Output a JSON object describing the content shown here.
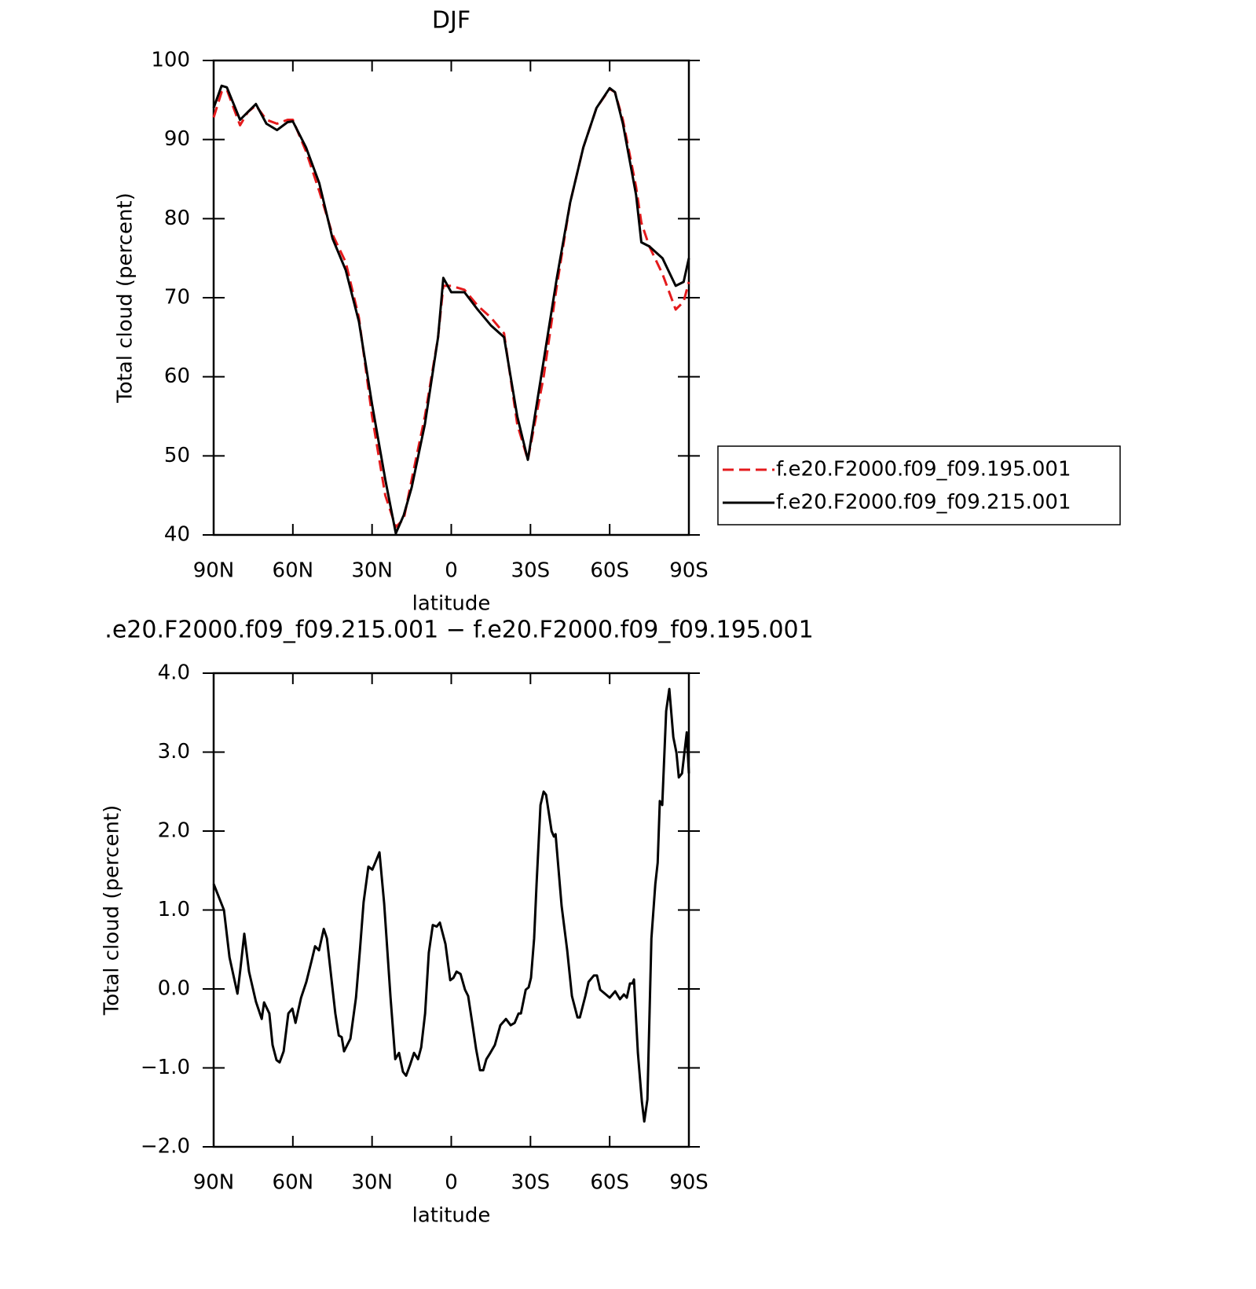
{
  "chart_data": [
    {
      "type": "line",
      "title": "DJF",
      "xlabel": "latitude",
      "ylabel": "Total cloud (percent)",
      "x": [
        90,
        87,
        85,
        80,
        77,
        74,
        70,
        66,
        62,
        60,
        55,
        50,
        45,
        40,
        35,
        30,
        25,
        21,
        18,
        15,
        10,
        5,
        3,
        0,
        -5,
        -10,
        -15,
        -20,
        -25,
        -29,
        -35,
        -40,
        -45,
        -50,
        -55,
        -60,
        -62,
        -65,
        -70,
        -72,
        -75,
        -80,
        -85,
        -88,
        -90
      ],
      "series": [
        {
          "name": "f.e20.F2000.f09_f09.195.001",
          "color": "#e41a1c",
          "dashed": true,
          "values": [
            92.8,
            96,
            96.3,
            91.8,
            93.5,
            94.3,
            92.5,
            92,
            92.5,
            92.5,
            88.5,
            83.5,
            78,
            74.5,
            67.5,
            55,
            45,
            41,
            42,
            47,
            55,
            65,
            71.5,
            71.5,
            71,
            69,
            67.5,
            65.5,
            54,
            49.5,
            60,
            71.5,
            82,
            89,
            94,
            96.4,
            96,
            92.5,
            84,
            79.5,
            76.5,
            73,
            68.5,
            69.5,
            72
          ]
        },
        {
          "name": "f.e20.F2000.f09_f09.215.001",
          "color": "#000000",
          "dashed": false,
          "values": [
            94,
            96.8,
            96.6,
            92.5,
            93.5,
            94.5,
            92,
            91.2,
            92.2,
            92.3,
            89,
            84.5,
            77.5,
            73.5,
            67,
            56.5,
            47,
            40.2,
            42.5,
            46,
            54,
            65,
            72.5,
            70.7,
            70.7,
            68.5,
            66.5,
            65,
            55,
            49.5,
            62,
            72.5,
            82,
            89,
            94,
            96.5,
            96,
            92,
            83,
            77,
            76.5,
            75,
            71.5,
            72,
            75
          ]
        }
      ],
      "xlim": [
        90,
        -90
      ],
      "xticks": [
        {
          "value": 90,
          "label": "90N"
        },
        {
          "value": 60,
          "label": "60N"
        },
        {
          "value": 30,
          "label": "30N"
        },
        0,
        {
          "value": -30,
          "label": "30S"
        },
        {
          "value": -60,
          "label": "60S"
        },
        {
          "value": -90,
          "label": "90S"
        }
      ],
      "ylim": [
        40,
        100
      ],
      "yticks": [
        40,
        50,
        60,
        70,
        80,
        90,
        100
      ],
      "legend": "right"
    },
    {
      "type": "line",
      "title": ".e20.F2000.f09_f09.215.001 − f.e20.F2000.f09_f09.195.001",
      "xlabel": "latitude",
      "ylabel": "Total cloud (percent)",
      "x": [
        90,
        86.1,
        84,
        82.3,
        81,
        79.9,
        78.4,
        76.6,
        74,
        71.8,
        70.9,
        68.9,
        67.7,
        66.2,
        65,
        63.5,
        61.7,
        60.2,
        59,
        56.9,
        54.9,
        52.8,
        51.6,
        50.1,
        48.3,
        47.1,
        43.9,
        42.6,
        41.5,
        40.6,
        38.2,
        36.1,
        34.6,
        33.2,
        31.4,
        29.9,
        28.4,
        27.2,
        25.4,
        23,
        21.2,
        19.8,
        18.3,
        17.1,
        15.6,
        14.1,
        12.6,
        11.4,
        9.9,
        8.5,
        7,
        5.5,
        4.3,
        2.2,
        0.4,
        -0.8,
        -2,
        -3.5,
        -5.2,
        -6.4,
        -8.2,
        -9.4,
        -10.9,
        -12.1,
        -13.3,
        -14.8,
        -16.5,
        -18.6,
        -20.7,
        -22.5,
        -24,
        -25.5,
        -26.4,
        -28.2,
        -29.3,
        -30.2,
        -31.4,
        -32.3,
        -33.8,
        -35,
        -35.9,
        -38,
        -38.9,
        -39.5,
        -41.8,
        -43.9,
        -45.7,
        -47.8,
        -48.7,
        -50.8,
        -52,
        -54,
        -55.2,
        -56.4,
        -58.2,
        -60,
        -62.1,
        -63.9,
        -65.4,
        -66.5,
        -67.7,
        -68.6,
        -69.2,
        -70.7,
        -72.2,
        -73.1,
        -74.3,
        -75.8,
        -77.3,
        -78.2,
        -79,
        -79.9,
        -81.4,
        -82.6,
        -84.1,
        -85.3,
        -86.2,
        -87.4,
        -89.2,
        -90
      ],
      "values": [
        1.33,
        1,
        0.4,
        0.14,
        -0.06,
        0.24,
        0.7,
        0.22,
        -0.16,
        -0.38,
        -0.17,
        -0.31,
        -0.71,
        -0.9,
        -0.93,
        -0.79,
        -0.31,
        -0.25,
        -0.43,
        -0.11,
        0.09,
        0.37,
        0.54,
        0.49,
        0.76,
        0.64,
        -0.31,
        -0.59,
        -0.61,
        -0.79,
        -0.63,
        -0.11,
        0.49,
        1.1,
        1.55,
        1.51,
        1.63,
        1.73,
        1.08,
        -0.11,
        -0.89,
        -0.81,
        -1.05,
        -1.1,
        -0.96,
        -0.81,
        -0.89,
        -0.74,
        -0.31,
        0.46,
        0.81,
        0.79,
        0.84,
        0.57,
        0.11,
        0.14,
        0.22,
        0.19,
        -0.01,
        -0.09,
        -0.49,
        -0.76,
        -1.03,
        -1.03,
        -0.89,
        -0.81,
        -0.71,
        -0.46,
        -0.38,
        -0.46,
        -0.43,
        -0.31,
        -0.31,
        -0.01,
        0.02,
        0.14,
        0.64,
        1.33,
        2.33,
        2.5,
        2.46,
        2,
        1.93,
        1.96,
        1.05,
        0.49,
        -0.09,
        -0.36,
        -0.36,
        -0.09,
        0.09,
        0.17,
        0.17,
        -0.01,
        -0.06,
        -0.11,
        -0.03,
        -0.13,
        -0.07,
        -0.11,
        0.07,
        0.07,
        0.12,
        -0.81,
        -1.43,
        -1.68,
        -1.4,
        0.64,
        1.33,
        1.6,
        2.38,
        2.33,
        3.52,
        3.8,
        3.19,
        2.99,
        2.68,
        2.73,
        3.25,
        2.73
      ],
      "color": "#000000",
      "xlim": [
        90,
        -90
      ],
      "xticks": [
        {
          "value": 90,
          "label": "90N"
        },
        {
          "value": 60,
          "label": "60N"
        },
        {
          "value": 30,
          "label": "30N"
        },
        0,
        {
          "value": -30,
          "label": "30S"
        },
        {
          "value": -60,
          "label": "60S"
        },
        {
          "value": -90,
          "label": "90S"
        }
      ],
      "ylim": [
        -2,
        4
      ],
      "yticks": [
        {
          "value": -2,
          "label": "−2.0"
        },
        {
          "value": -1,
          "label": "−1.0"
        },
        {
          "value": 0,
          "label": "0.0"
        },
        {
          "value": 1,
          "label": "1.0"
        },
        {
          "value": 2,
          "label": "2.0"
        },
        {
          "value": 3,
          "label": "3.0"
        },
        {
          "value": 4,
          "label": "4.0"
        }
      ]
    }
  ]
}
